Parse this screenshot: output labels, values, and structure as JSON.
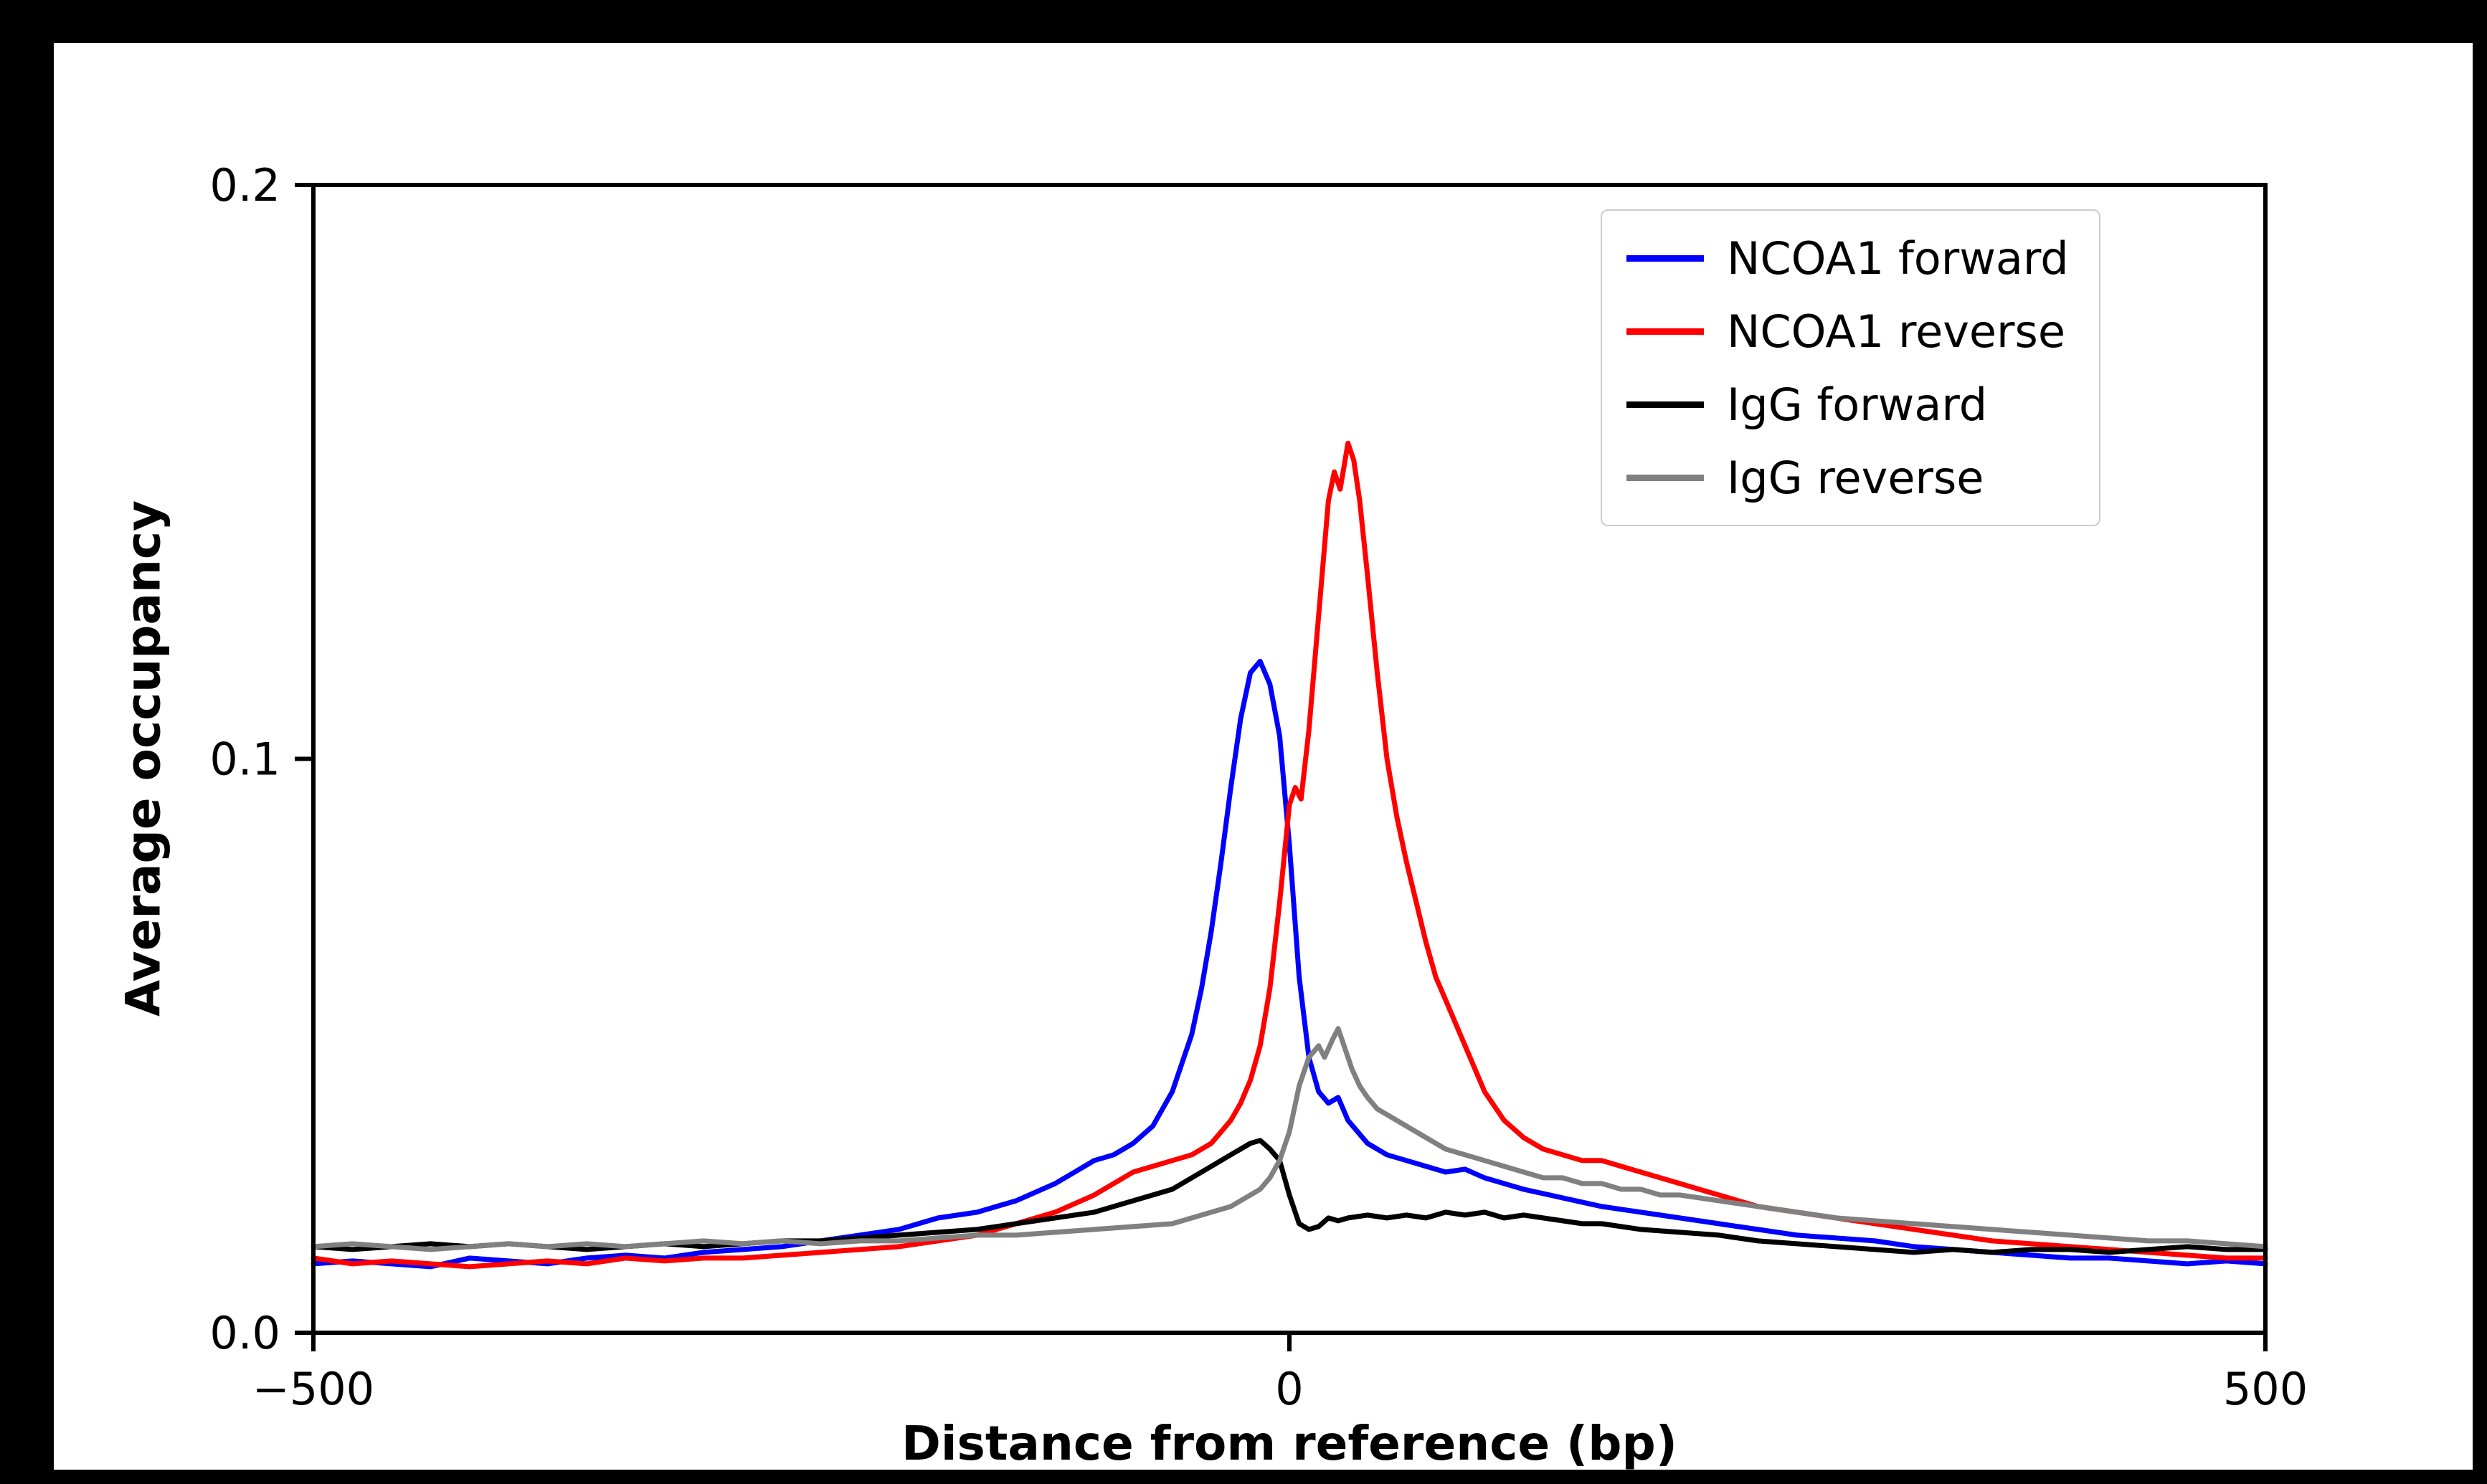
{
  "figure": {
    "background": "#ffffff",
    "frame_color": "#000000"
  },
  "chart_data": {
    "type": "line",
    "title": "",
    "xlabel": "Distance from reference (bp)",
    "ylabel": "Average occupancy",
    "xlim": [
      -500,
      500
    ],
    "ylim": [
      0,
      0.2
    ],
    "grid": false,
    "legend_position": "upper right",
    "xticks": [
      {
        "value": -500,
        "label": "−500"
      },
      {
        "value": 0,
        "label": "0"
      },
      {
        "value": 500,
        "label": "500"
      }
    ],
    "yticks": [
      {
        "value": 0.0,
        "label": "0.0"
      },
      {
        "value": 0.1,
        "label": "0.1"
      },
      {
        "value": 0.2,
        "label": "0.2"
      }
    ],
    "series": [
      {
        "name": "NCOA1 forward",
        "color": "#0000ff",
        "points": [
          [
            -500,
            0.012
          ],
          [
            -480,
            0.0125
          ],
          [
            -460,
            0.012
          ],
          [
            -440,
            0.0115
          ],
          [
            -420,
            0.013
          ],
          [
            -400,
            0.0125
          ],
          [
            -380,
            0.012
          ],
          [
            -360,
            0.013
          ],
          [
            -340,
            0.0135
          ],
          [
            -320,
            0.013
          ],
          [
            -300,
            0.014
          ],
          [
            -280,
            0.0145
          ],
          [
            -260,
            0.015
          ],
          [
            -240,
            0.016
          ],
          [
            -220,
            0.017
          ],
          [
            -200,
            0.018
          ],
          [
            -180,
            0.02
          ],
          [
            -160,
            0.021
          ],
          [
            -140,
            0.023
          ],
          [
            -120,
            0.026
          ],
          [
            -110,
            0.028
          ],
          [
            -100,
            0.03
          ],
          [
            -90,
            0.031
          ],
          [
            -80,
            0.033
          ],
          [
            -70,
            0.036
          ],
          [
            -60,
            0.042
          ],
          [
            -50,
            0.052
          ],
          [
            -45,
            0.06
          ],
          [
            -40,
            0.07
          ],
          [
            -35,
            0.082
          ],
          [
            -30,
            0.095
          ],
          [
            -25,
            0.107
          ],
          [
            -20,
            0.115
          ],
          [
            -15,
            0.117
          ],
          [
            -10,
            0.113
          ],
          [
            -5,
            0.104
          ],
          [
            0,
            0.085
          ],
          [
            5,
            0.062
          ],
          [
            10,
            0.048
          ],
          [
            15,
            0.042
          ],
          [
            20,
            0.04
          ],
          [
            25,
            0.041
          ],
          [
            30,
            0.037
          ],
          [
            40,
            0.033
          ],
          [
            50,
            0.031
          ],
          [
            60,
            0.03
          ],
          [
            70,
            0.029
          ],
          [
            80,
            0.028
          ],
          [
            90,
            0.0285
          ],
          [
            100,
            0.027
          ],
          [
            120,
            0.025
          ],
          [
            140,
            0.0235
          ],
          [
            160,
            0.022
          ],
          [
            180,
            0.021
          ],
          [
            200,
            0.02
          ],
          [
            220,
            0.019
          ],
          [
            240,
            0.018
          ],
          [
            260,
            0.017
          ],
          [
            280,
            0.0165
          ],
          [
            300,
            0.016
          ],
          [
            320,
            0.015
          ],
          [
            340,
            0.0145
          ],
          [
            360,
            0.014
          ],
          [
            380,
            0.0135
          ],
          [
            400,
            0.013
          ],
          [
            420,
            0.013
          ],
          [
            440,
            0.0125
          ],
          [
            460,
            0.012
          ],
          [
            480,
            0.0125
          ],
          [
            500,
            0.012
          ]
        ]
      },
      {
        "name": "NCOA1 reverse",
        "color": "#ff0000",
        "points": [
          [
            -500,
            0.013
          ],
          [
            -480,
            0.012
          ],
          [
            -460,
            0.0125
          ],
          [
            -440,
            0.012
          ],
          [
            -420,
            0.0115
          ],
          [
            -400,
            0.012
          ],
          [
            -380,
            0.0125
          ],
          [
            -360,
            0.012
          ],
          [
            -340,
            0.013
          ],
          [
            -320,
            0.0125
          ],
          [
            -300,
            0.013
          ],
          [
            -280,
            0.013
          ],
          [
            -260,
            0.0135
          ],
          [
            -240,
            0.014
          ],
          [
            -220,
            0.0145
          ],
          [
            -200,
            0.015
          ],
          [
            -180,
            0.016
          ],
          [
            -160,
            0.017
          ],
          [
            -140,
            0.019
          ],
          [
            -120,
            0.021
          ],
          [
            -100,
            0.024
          ],
          [
            -90,
            0.026
          ],
          [
            -80,
            0.028
          ],
          [
            -70,
            0.029
          ],
          [
            -60,
            0.03
          ],
          [
            -50,
            0.031
          ],
          [
            -40,
            0.033
          ],
          [
            -30,
            0.037
          ],
          [
            -25,
            0.04
          ],
          [
            -20,
            0.044
          ],
          [
            -15,
            0.05
          ],
          [
            -10,
            0.06
          ],
          [
            -5,
            0.075
          ],
          [
            0,
            0.092
          ],
          [
            3,
            0.095
          ],
          [
            6,
            0.093
          ],
          [
            10,
            0.105
          ],
          [
            15,
            0.125
          ],
          [
            20,
            0.145
          ],
          [
            23,
            0.15
          ],
          [
            26,
            0.147
          ],
          [
            30,
            0.155
          ],
          [
            33,
            0.152
          ],
          [
            36,
            0.145
          ],
          [
            40,
            0.132
          ],
          [
            45,
            0.115
          ],
          [
            50,
            0.1
          ],
          [
            55,
            0.09
          ],
          [
            60,
            0.082
          ],
          [
            65,
            0.075
          ],
          [
            70,
            0.068
          ],
          [
            75,
            0.062
          ],
          [
            80,
            0.058
          ],
          [
            85,
            0.054
          ],
          [
            90,
            0.05
          ],
          [
            95,
            0.046
          ],
          [
            100,
            0.042
          ],
          [
            110,
            0.037
          ],
          [
            120,
            0.034
          ],
          [
            130,
            0.032
          ],
          [
            140,
            0.031
          ],
          [
            150,
            0.03
          ],
          [
            160,
            0.03
          ],
          [
            170,
            0.029
          ],
          [
            180,
            0.028
          ],
          [
            190,
            0.027
          ],
          [
            200,
            0.026
          ],
          [
            220,
            0.024
          ],
          [
            240,
            0.022
          ],
          [
            260,
            0.021
          ],
          [
            280,
            0.02
          ],
          [
            300,
            0.019
          ],
          [
            320,
            0.018
          ],
          [
            340,
            0.017
          ],
          [
            360,
            0.016
          ],
          [
            380,
            0.0155
          ],
          [
            400,
            0.015
          ],
          [
            420,
            0.0145
          ],
          [
            440,
            0.014
          ],
          [
            460,
            0.0135
          ],
          [
            480,
            0.013
          ],
          [
            500,
            0.013
          ]
        ]
      },
      {
        "name": "IgG forward",
        "color": "#000000",
        "points": [
          [
            -500,
            0.015
          ],
          [
            -480,
            0.0145
          ],
          [
            -460,
            0.015
          ],
          [
            -440,
            0.0155
          ],
          [
            -420,
            0.015
          ],
          [
            -400,
            0.0155
          ],
          [
            -380,
            0.015
          ],
          [
            -360,
            0.0145
          ],
          [
            -340,
            0.015
          ],
          [
            -320,
            0.0155
          ],
          [
            -300,
            0.015
          ],
          [
            -280,
            0.0155
          ],
          [
            -260,
            0.016
          ],
          [
            -240,
            0.016
          ],
          [
            -220,
            0.0165
          ],
          [
            -200,
            0.017
          ],
          [
            -180,
            0.0175
          ],
          [
            -160,
            0.018
          ],
          [
            -140,
            0.019
          ],
          [
            -120,
            0.02
          ],
          [
            -100,
            0.021
          ],
          [
            -90,
            0.022
          ],
          [
            -80,
            0.023
          ],
          [
            -70,
            0.024
          ],
          [
            -60,
            0.025
          ],
          [
            -50,
            0.027
          ],
          [
            -40,
            0.029
          ],
          [
            -30,
            0.031
          ],
          [
            -25,
            0.032
          ],
          [
            -20,
            0.033
          ],
          [
            -15,
            0.0335
          ],
          [
            -10,
            0.032
          ],
          [
            -5,
            0.03
          ],
          [
            0,
            0.024
          ],
          [
            5,
            0.019
          ],
          [
            10,
            0.018
          ],
          [
            15,
            0.0185
          ],
          [
            20,
            0.02
          ],
          [
            25,
            0.0195
          ],
          [
            30,
            0.02
          ],
          [
            40,
            0.0205
          ],
          [
            50,
            0.02
          ],
          [
            60,
            0.0205
          ],
          [
            70,
            0.02
          ],
          [
            80,
            0.021
          ],
          [
            90,
            0.0205
          ],
          [
            100,
            0.021
          ],
          [
            110,
            0.02
          ],
          [
            120,
            0.0205
          ],
          [
            130,
            0.02
          ],
          [
            140,
            0.0195
          ],
          [
            150,
            0.019
          ],
          [
            160,
            0.019
          ],
          [
            170,
            0.0185
          ],
          [
            180,
            0.018
          ],
          [
            200,
            0.0175
          ],
          [
            220,
            0.017
          ],
          [
            240,
            0.016
          ],
          [
            260,
            0.0155
          ],
          [
            280,
            0.015
          ],
          [
            300,
            0.0145
          ],
          [
            320,
            0.014
          ],
          [
            340,
            0.0145
          ],
          [
            360,
            0.014
          ],
          [
            380,
            0.0145
          ],
          [
            400,
            0.0145
          ],
          [
            420,
            0.014
          ],
          [
            440,
            0.0145
          ],
          [
            460,
            0.015
          ],
          [
            480,
            0.0145
          ],
          [
            500,
            0.0145
          ]
        ]
      },
      {
        "name": "IgG reverse",
        "color": "#808080",
        "points": [
          [
            -500,
            0.015
          ],
          [
            -480,
            0.0155
          ],
          [
            -460,
            0.015
          ],
          [
            -440,
            0.0145
          ],
          [
            -420,
            0.015
          ],
          [
            -400,
            0.0155
          ],
          [
            -380,
            0.015
          ],
          [
            -360,
            0.0155
          ],
          [
            -340,
            0.015
          ],
          [
            -320,
            0.0155
          ],
          [
            -300,
            0.016
          ],
          [
            -280,
            0.0155
          ],
          [
            -260,
            0.016
          ],
          [
            -240,
            0.0155
          ],
          [
            -220,
            0.016
          ],
          [
            -200,
            0.016
          ],
          [
            -180,
            0.0165
          ],
          [
            -160,
            0.017
          ],
          [
            -140,
            0.017
          ],
          [
            -120,
            0.0175
          ],
          [
            -100,
            0.018
          ],
          [
            -80,
            0.0185
          ],
          [
            -60,
            0.019
          ],
          [
            -50,
            0.02
          ],
          [
            -40,
            0.021
          ],
          [
            -30,
            0.022
          ],
          [
            -20,
            0.024
          ],
          [
            -15,
            0.025
          ],
          [
            -10,
            0.027
          ],
          [
            -5,
            0.03
          ],
          [
            0,
            0.035
          ],
          [
            5,
            0.043
          ],
          [
            10,
            0.048
          ],
          [
            15,
            0.05
          ],
          [
            18,
            0.048
          ],
          [
            22,
            0.051
          ],
          [
            25,
            0.053
          ],
          [
            28,
            0.05
          ],
          [
            32,
            0.046
          ],
          [
            36,
            0.043
          ],
          [
            40,
            0.041
          ],
          [
            45,
            0.039
          ],
          [
            50,
            0.038
          ],
          [
            60,
            0.036
          ],
          [
            70,
            0.034
          ],
          [
            80,
            0.032
          ],
          [
            90,
            0.031
          ],
          [
            100,
            0.03
          ],
          [
            110,
            0.029
          ],
          [
            120,
            0.028
          ],
          [
            130,
            0.027
          ],
          [
            140,
            0.027
          ],
          [
            150,
            0.026
          ],
          [
            160,
            0.026
          ],
          [
            170,
            0.025
          ],
          [
            180,
            0.025
          ],
          [
            190,
            0.024
          ],
          [
            200,
            0.024
          ],
          [
            220,
            0.023
          ],
          [
            240,
            0.022
          ],
          [
            260,
            0.021
          ],
          [
            280,
            0.02
          ],
          [
            300,
            0.0195
          ],
          [
            320,
            0.019
          ],
          [
            340,
            0.0185
          ],
          [
            360,
            0.018
          ],
          [
            380,
            0.0175
          ],
          [
            400,
            0.017
          ],
          [
            420,
            0.0165
          ],
          [
            440,
            0.016
          ],
          [
            460,
            0.016
          ],
          [
            480,
            0.0155
          ],
          [
            500,
            0.015
          ]
        ]
      }
    ]
  }
}
